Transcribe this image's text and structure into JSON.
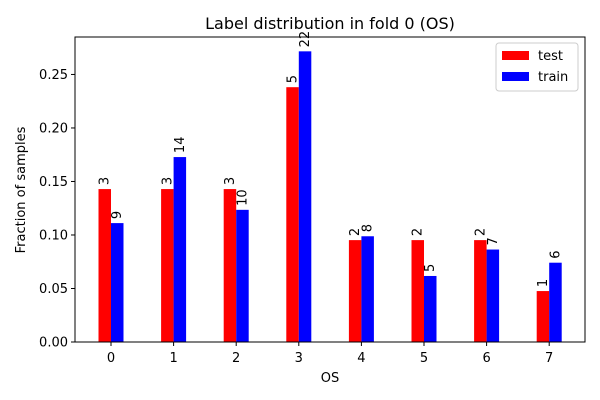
{
  "chart_data": {
    "type": "bar",
    "title": "Label distribution in fold 0 (OS)",
    "xlabel": "OS",
    "ylabel": "Fraction of samples",
    "categories": [
      "0",
      "1",
      "2",
      "3",
      "4",
      "5",
      "6",
      "7"
    ],
    "ylim": [
      0,
      0.285
    ],
    "yticks": [
      0.0,
      0.05,
      0.1,
      0.15,
      0.2,
      0.25
    ],
    "ytick_labels": [
      "0.00",
      "0.05",
      "0.10",
      "0.15",
      "0.20",
      "0.25"
    ],
    "grid": false,
    "legend_position": "top-right",
    "series": [
      {
        "name": "test",
        "color": "#ff0000",
        "values": [
          0.1429,
          0.1429,
          0.1429,
          0.2381,
          0.0952,
          0.0952,
          0.0952,
          0.0476
        ],
        "labels": [
          "3",
          "3",
          "3",
          "5",
          "2",
          "2",
          "2",
          "1"
        ]
      },
      {
        "name": "train",
        "color": "#0000ff",
        "values": [
          0.1111,
          0.1728,
          0.1235,
          0.2716,
          0.0988,
          0.0617,
          0.0864,
          0.0741
        ],
        "labels": [
          "9",
          "14",
          "10",
          "22",
          "8",
          "5",
          "7",
          "6"
        ]
      }
    ]
  }
}
